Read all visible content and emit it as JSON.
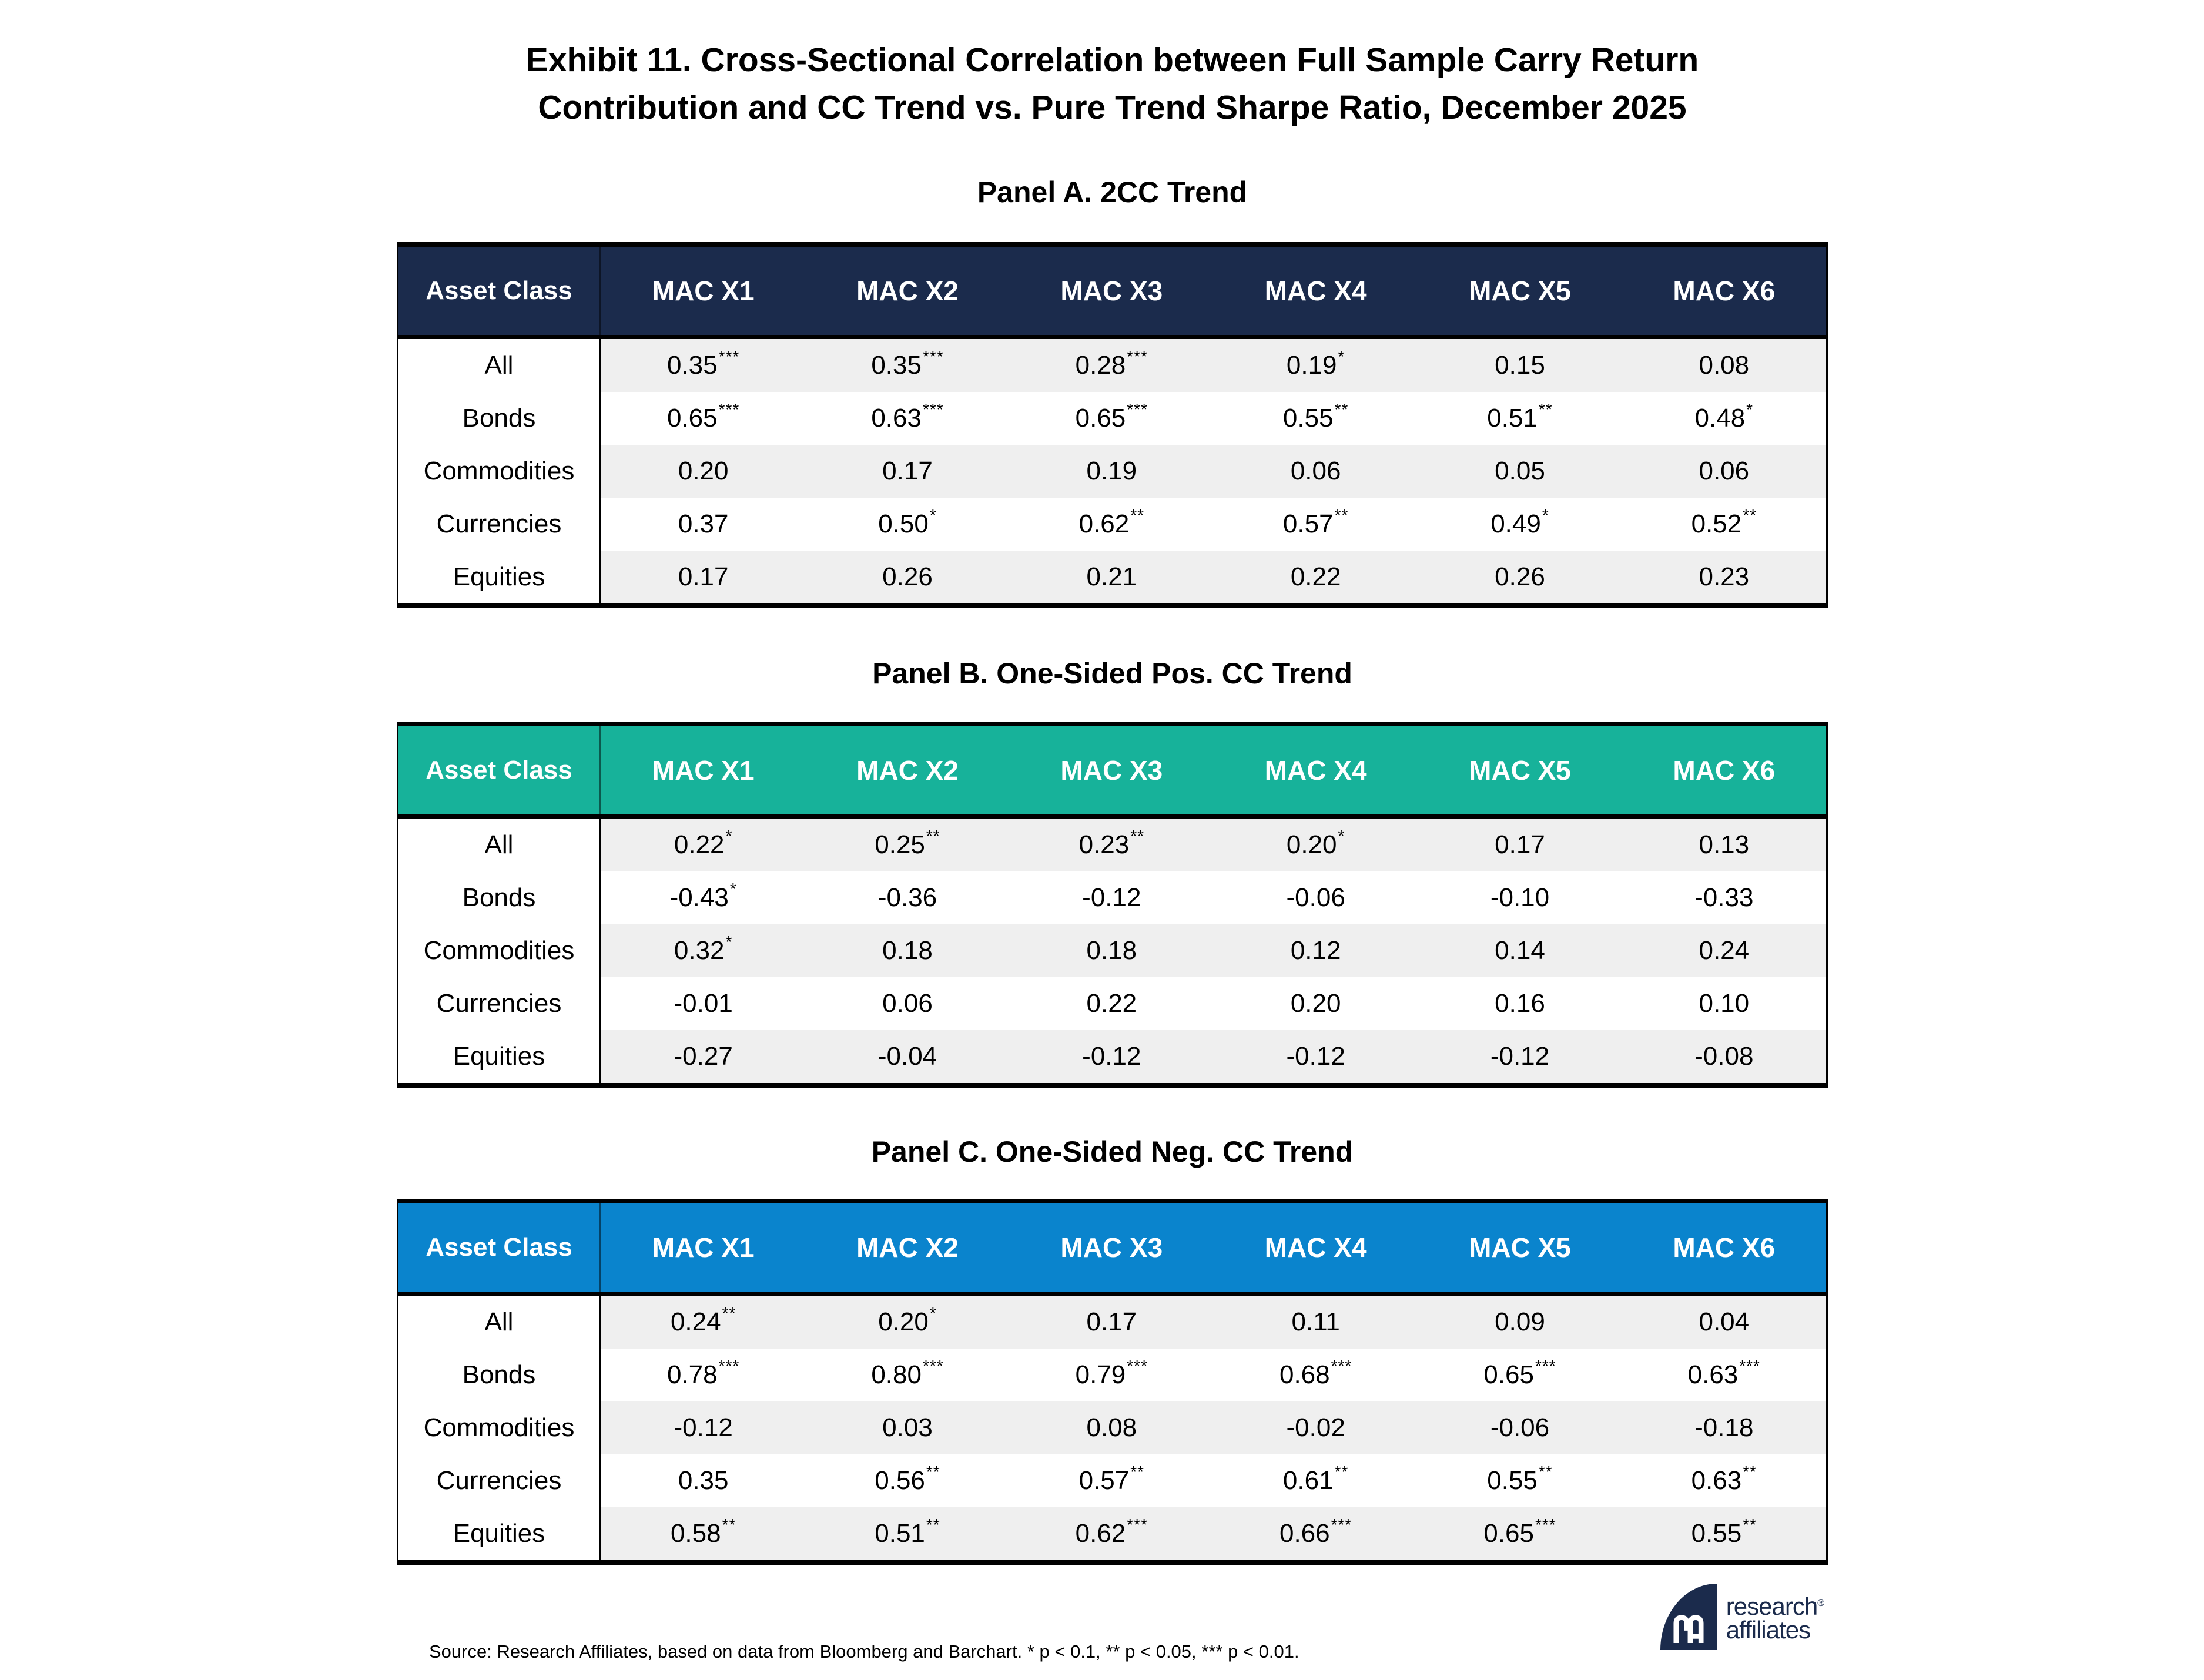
{
  "title": {
    "line1": "Exhibit 11. Cross-Sectional Correlation between Full Sample Carry Return",
    "line2": "Contribution and CC Trend vs. Pure Trend Sharpe Ratio, December 2025"
  },
  "columns": [
    "Asset Class",
    "MAC X1",
    "MAC X2",
    "MAC X3",
    "MAC X4",
    "MAC X5",
    "MAC X6"
  ],
  "stripe_color": "#efefef",
  "panels": [
    {
      "title": "Panel A. 2CC Trend",
      "header_color": "#1b2b4c",
      "rows": [
        {
          "label": "All",
          "values": [
            "0.35***",
            "0.35***",
            "0.28***",
            "0.19*",
            "0.15",
            "0.08"
          ]
        },
        {
          "label": "Bonds",
          "values": [
            "0.65***",
            "0.63***",
            "0.65***",
            "0.55**",
            "0.51**",
            "0.48*"
          ]
        },
        {
          "label": "Commodities",
          "values": [
            "0.20",
            "0.17",
            "0.19",
            "0.06",
            "0.05",
            "0.06"
          ]
        },
        {
          "label": "Currencies",
          "values": [
            "0.37",
            "0.50*",
            "0.62**",
            "0.57**",
            "0.49*",
            "0.52**"
          ]
        },
        {
          "label": "Equities",
          "values": [
            "0.17",
            "0.26",
            "0.21",
            "0.22",
            "0.26",
            "0.23"
          ]
        }
      ]
    },
    {
      "title": "Panel B. One-Sided Pos. CC Trend",
      "header_color": "#17b29a",
      "rows": [
        {
          "label": "All",
          "values": [
            "0.22*",
            "0.25**",
            "0.23**",
            "0.20*",
            "0.17",
            "0.13"
          ]
        },
        {
          "label": "Bonds",
          "values": [
            "-0.43*",
            "-0.36",
            "-0.12",
            "-0.06",
            "-0.10",
            "-0.33"
          ]
        },
        {
          "label": "Commodities",
          "values": [
            "0.32*",
            "0.18",
            "0.18",
            "0.12",
            "0.14",
            "0.24"
          ]
        },
        {
          "label": "Currencies",
          "values": [
            "-0.01",
            "0.06",
            "0.22",
            "0.20",
            "0.16",
            "0.10"
          ]
        },
        {
          "label": "Equities",
          "values": [
            "-0.27",
            "-0.04",
            "-0.12",
            "-0.12",
            "-0.12",
            "-0.08"
          ]
        }
      ]
    },
    {
      "title": "Panel C. One-Sided Neg. CC Trend",
      "header_color": "#0a84cd",
      "rows": [
        {
          "label": "All",
          "values": [
            "0.24**",
            "0.20*",
            "0.17",
            "0.11",
            "0.09",
            "0.04"
          ]
        },
        {
          "label": "Bonds",
          "values": [
            "0.78***",
            "0.80***",
            "0.79***",
            "0.68***",
            "0.65***",
            "0.63***"
          ]
        },
        {
          "label": "Commodities",
          "values": [
            "-0.12",
            "0.03",
            "0.08",
            "-0.02",
            "-0.06",
            "-0.18"
          ]
        },
        {
          "label": "Currencies",
          "values": [
            "0.35",
            "0.56**",
            "0.57**",
            "0.61**",
            "0.55**",
            "0.63**"
          ]
        },
        {
          "label": "Equities",
          "values": [
            "0.58**",
            "0.51**",
            "0.62***",
            "0.66***",
            "0.65***",
            "0.55**"
          ]
        }
      ]
    }
  ],
  "footer": {
    "source": "Source: Research Affiliates, based on data from Bloomberg and Barchart. * p < 0.1, ** p < 0.05, *** p < 0.01.",
    "logo": {
      "monogram": "RA",
      "wordmark_line1": "research",
      "wordmark_line2": "affiliates",
      "registered": "®",
      "color": "#1b2b4c"
    }
  }
}
